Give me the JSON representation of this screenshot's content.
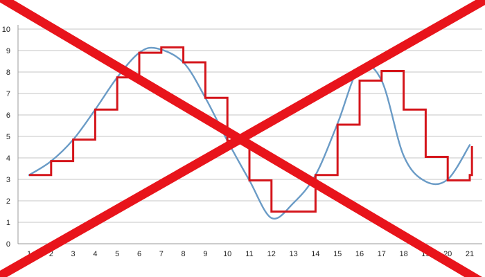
{
  "chart_data": {
    "type": "line",
    "title": "",
    "xlabel": "",
    "ylabel": "",
    "xlim": [
      1,
      21
    ],
    "ylim": [
      0,
      10
    ],
    "grid": true,
    "legend": "none",
    "x_ticks": [
      "1",
      "2",
      "3",
      "4",
      "5",
      "6",
      "7",
      "8",
      "9",
      "10",
      "11",
      "12",
      "13",
      "14",
      "15",
      "16",
      "17",
      "18",
      "19",
      "20",
      "21"
    ],
    "y_ticks": [
      "0",
      "1",
      "2",
      "3",
      "4",
      "5",
      "6",
      "7",
      "8",
      "9",
      "10"
    ],
    "series": [
      {
        "style": "smooth",
        "color": "#6a9bc6",
        "points": [
          {
            "x": 1,
            "y": 3.2
          },
          {
            "x": 2,
            "y": 3.85
          },
          {
            "x": 3,
            "y": 4.85
          },
          {
            "x": 4,
            "y": 6.25
          },
          {
            "x": 5,
            "y": 7.75
          },
          {
            "x": 6,
            "y": 8.9
          },
          {
            "x": 6.8,
            "y": 9.1
          },
          {
            "x": 8,
            "y": 8.45
          },
          {
            "x": 9,
            "y": 6.8
          },
          {
            "x": 10,
            "y": 4.8
          },
          {
            "x": 11,
            "y": 2.95
          },
          {
            "x": 12,
            "y": 1.2
          },
          {
            "x": 13,
            "y": 1.9
          },
          {
            "x": 14,
            "y": 3.2
          },
          {
            "x": 15,
            "y": 5.6
          },
          {
            "x": 16,
            "y": 8.2
          },
          {
            "x": 17,
            "y": 7.6
          },
          {
            "x": 18,
            "y": 4.1
          },
          {
            "x": 19,
            "y": 2.9
          },
          {
            "x": 20,
            "y": 3.0
          },
          {
            "x": 21,
            "y": 4.6
          }
        ]
      },
      {
        "style": "step",
        "color": "#d4151b",
        "points": [
          {
            "x": 1,
            "y": 3.2
          },
          {
            "x": 2,
            "y": 3.85
          },
          {
            "x": 3,
            "y": 4.85
          },
          {
            "x": 4,
            "y": 6.25
          },
          {
            "x": 5,
            "y": 7.75
          },
          {
            "x": 6,
            "y": 8.9
          },
          {
            "x": 7,
            "y": 9.15
          },
          {
            "x": 8,
            "y": 8.45
          },
          {
            "x": 9,
            "y": 6.8
          },
          {
            "x": 10,
            "y": 4.8
          },
          {
            "x": 11,
            "y": 2.95
          },
          {
            "x": 12,
            "y": 1.5
          },
          {
            "x": 13,
            "y": 1.5
          },
          {
            "x": 14,
            "y": 3.2
          },
          {
            "x": 15,
            "y": 5.55
          },
          {
            "x": 16,
            "y": 7.6
          },
          {
            "x": 17,
            "y": 8.05
          },
          {
            "x": 18,
            "y": 6.25
          },
          {
            "x": 19,
            "y": 4.05
          },
          {
            "x": 20,
            "y": 2.95
          },
          {
            "x": 21,
            "y": 3.2
          },
          {
            "x": 21.1,
            "y": 4.55
          }
        ]
      }
    ],
    "overlay": {
      "type": "cross-out",
      "color": "#e8141b"
    }
  }
}
